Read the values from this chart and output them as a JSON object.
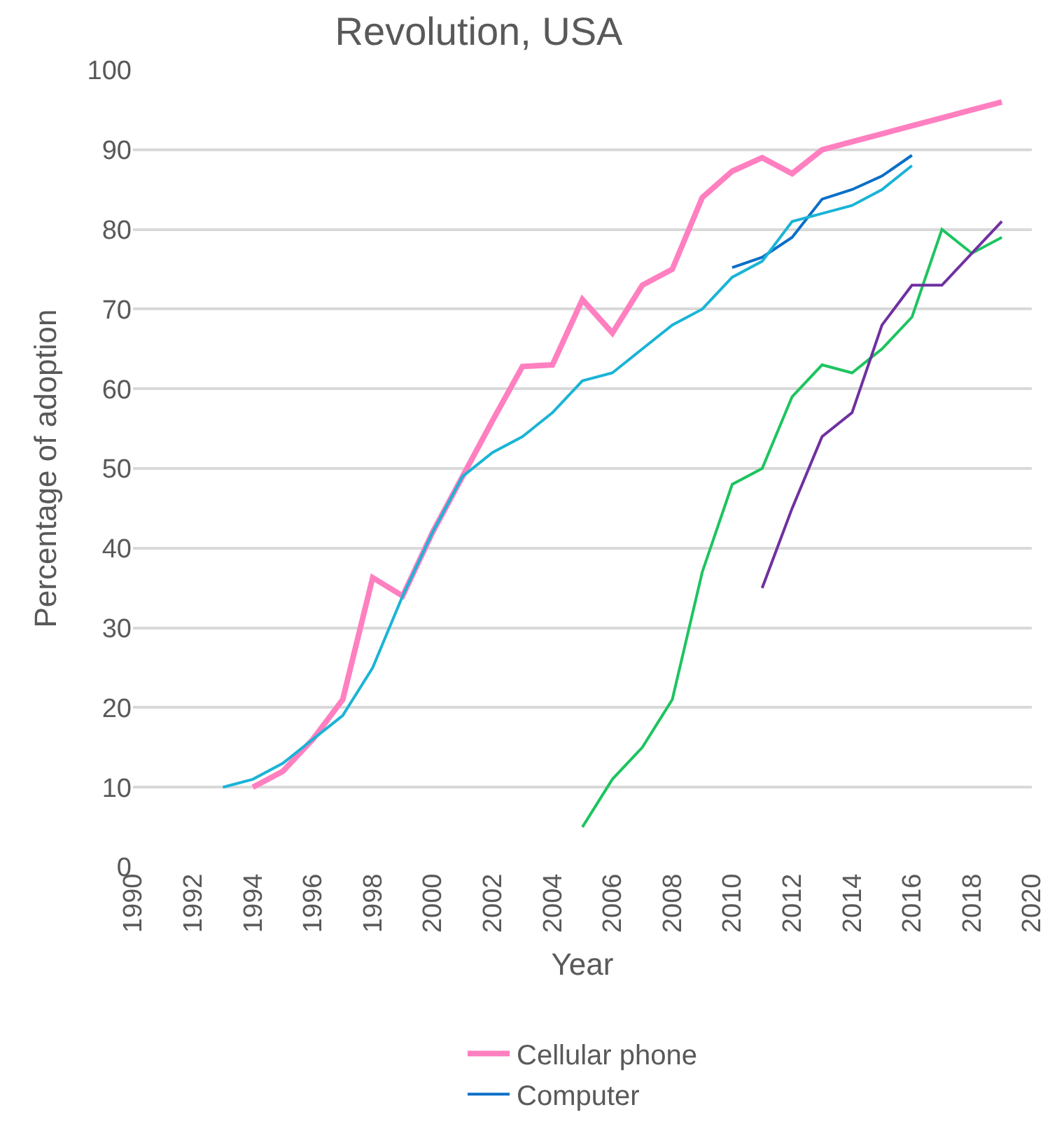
{
  "chart_data": {
    "type": "line",
    "title": "Revolution, USA",
    "xlabel": "Year",
    "ylabel": "Percentage of adoption",
    "xlim": [
      1990,
      2020
    ],
    "xticks": [
      1990,
      1992,
      1994,
      1996,
      1998,
      2000,
      2002,
      2004,
      2006,
      2008,
      2010,
      2012,
      2014,
      2016,
      2018,
      2020
    ],
    "ylim": [
      0,
      100
    ],
    "yticks": [
      0,
      10,
      20,
      30,
      40,
      50,
      60,
      70,
      80,
      90,
      100
    ],
    "grid": "y",
    "legend": "bottom",
    "series": [
      {
        "name": "Cellular phone",
        "color": "#ff7fc0",
        "x": [
          1994,
          1995,
          1996,
          1997,
          1998,
          1999,
          2000,
          2001,
          2002,
          2003,
          2004,
          2005,
          2006,
          2007,
          2008,
          2009,
          2010,
          2011,
          2012,
          2013,
          2014,
          2015,
          2016,
          2017,
          2018,
          2019
        ],
        "values": [
          10,
          12,
          16,
          21,
          36.3,
          34,
          42,
          49,
          56,
          62.8,
          63,
          71.2,
          67,
          73,
          75,
          84,
          87.3,
          89,
          87,
          90,
          91,
          92,
          93,
          94,
          95,
          96
        ]
      },
      {
        "name": "Computer",
        "color": "#0a6fc8",
        "x": [
          2010,
          2011,
          2012,
          2013,
          2014,
          2015,
          2016
        ],
        "values": [
          75.2,
          76.5,
          79,
          83.8,
          85,
          86.7,
          89.3
        ]
      },
      {
        "color": "#1ab4d6",
        "x": [
          1993,
          1994,
          1995,
          1996,
          1997,
          1998,
          1999,
          2000,
          2001,
          2002,
          2003,
          2004,
          2005,
          2006,
          2007,
          2008,
          2009,
          2010,
          2011,
          2012,
          2013,
          2014,
          2015,
          2016
        ],
        "values": [
          10,
          11,
          13,
          16,
          19,
          25,
          34,
          42,
          49,
          52,
          54,
          57,
          61,
          62,
          65,
          68,
          70,
          74,
          76,
          81,
          82,
          83,
          85,
          88
        ]
      },
      {
        "color": "#1dc45f",
        "x": [
          2005,
          2006,
          2007,
          2008,
          2009,
          2010,
          2011,
          2012,
          2013,
          2014,
          2015,
          2016,
          2017,
          2018,
          2019
        ],
        "values": [
          5,
          11,
          15,
          21,
          37,
          48,
          50,
          59,
          63,
          62,
          65,
          69,
          80,
          77,
          79
        ]
      },
      {
        "color": "#7030a0",
        "x": [
          2011,
          2012,
          2013,
          2014,
          2015,
          2016,
          2017,
          2018,
          2019
        ],
        "values": [
          35,
          45,
          54,
          57,
          68,
          73,
          73,
          77,
          81
        ]
      }
    ]
  }
}
